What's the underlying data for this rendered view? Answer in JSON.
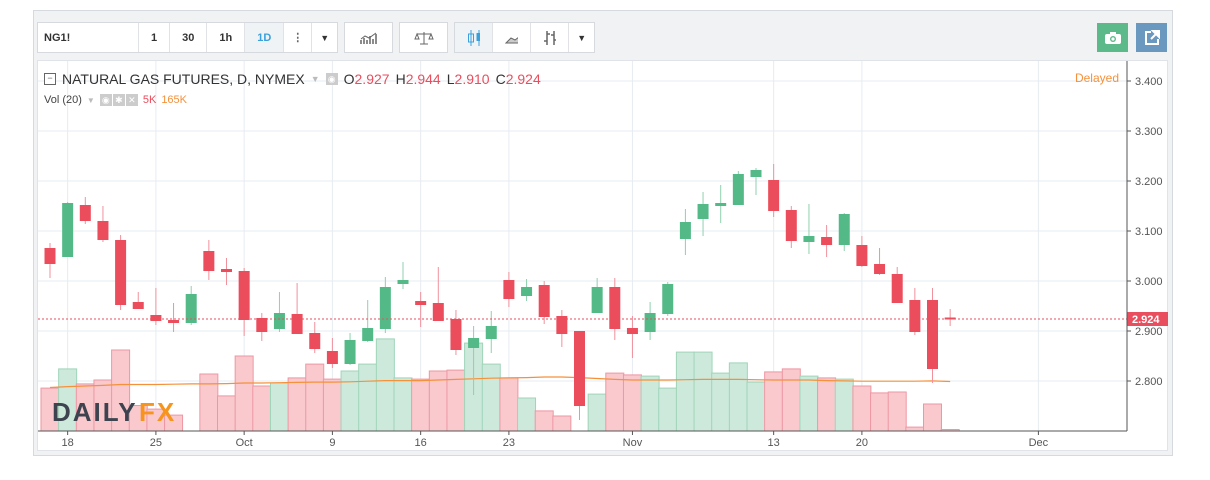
{
  "toolbar": {
    "symbol": "NG1!",
    "intervals": [
      "1",
      "30",
      "1h",
      "1D"
    ],
    "active_interval": "1D"
  },
  "legend": {
    "title": "NATURAL GAS FUTURES, D, NYMEX",
    "o_label": "O",
    "o": "2.927",
    "h_label": "H",
    "h": "2.944",
    "l_label": "L",
    "l": "2.910",
    "c_label": "C",
    "c": "2.924",
    "vol_label": "Vol (20)",
    "vol": "5K",
    "vol_ma": "165K",
    "delayed": "Delayed",
    "logo": "DAILYFX"
  },
  "colors": {
    "up": "#53b987",
    "down": "#eb4d5c",
    "up_vol": "#cde9db",
    "down_vol": "#f9c9ce",
    "ma": "#f5913a"
  },
  "chart_data": {
    "type": "candlestick",
    "last_price": "2.924",
    "price_ticks": [
      "3.400",
      "3.300",
      "3.200",
      "3.100",
      "3.000",
      "2.900",
      "2.800"
    ],
    "x_ticks": [
      {
        "label": "18",
        "bar": 1
      },
      {
        "label": "25",
        "bar": 6
      },
      {
        "label": "Oct",
        "bar": 11
      },
      {
        "label": "9",
        "bar": 16
      },
      {
        "label": "16",
        "bar": 21
      },
      {
        "label": "23",
        "bar": 26
      },
      {
        "label": "Nov",
        "bar": 33
      },
      {
        "label": "13",
        "bar": 41
      },
      {
        "label": "20",
        "bar": 46
      },
      {
        "label": "Dec",
        "bar": 56
      }
    ],
    "ohlc": [
      [
        3.066,
        3.076,
        3.006,
        3.034
      ],
      [
        3.048,
        3.158,
        3.048,
        3.156
      ],
      [
        3.152,
        3.168,
        3.114,
        3.12
      ],
      [
        3.12,
        3.15,
        3.078,
        3.082
      ],
      [
        3.082,
        3.092,
        2.942,
        2.952
      ],
      [
        2.958,
        2.978,
        2.944,
        2.944
      ],
      [
        2.932,
        2.986,
        2.912,
        2.92
      ],
      [
        2.922,
        2.956,
        2.898,
        2.916
      ],
      [
        2.916,
        2.99,
        2.912,
        2.974
      ],
      [
        3.06,
        3.082,
        3.002,
        3.02
      ],
      [
        3.024,
        3.046,
        2.992,
        3.018
      ],
      [
        3.02,
        3.026,
        2.89,
        2.922
      ],
      [
        2.926,
        2.936,
        2.88,
        2.898
      ],
      [
        2.904,
        2.978,
        2.898,
        2.936
      ],
      [
        2.934,
        2.996,
        2.894,
        2.894
      ],
      [
        2.896,
        2.918,
        2.856,
        2.864
      ],
      [
        2.86,
        2.886,
        2.826,
        2.834
      ],
      [
        2.834,
        2.896,
        2.832,
        2.882
      ],
      [
        2.88,
        2.962,
        2.878,
        2.906
      ],
      [
        2.904,
        3.008,
        2.896,
        2.988
      ],
      [
        2.994,
        3.038,
        2.984,
        3.002
      ],
      [
        2.96,
        2.978,
        2.908,
        2.952
      ],
      [
        2.956,
        3.028,
        2.92,
        2.92
      ],
      [
        2.924,
        2.942,
        2.852,
        2.862
      ],
      [
        2.866,
        2.91,
        2.772,
        2.886
      ],
      [
        2.884,
        2.94,
        2.856,
        2.91
      ],
      [
        3.002,
        3.018,
        2.948,
        2.964
      ],
      [
        2.97,
        3.004,
        2.96,
        2.988
      ],
      [
        2.992,
        3.0,
        2.914,
        2.928
      ],
      [
        2.93,
        2.942,
        2.868,
        2.894
      ],
      [
        2.9,
        2.9,
        2.722,
        2.75
      ],
      [
        2.936,
        3.006,
        2.936,
        2.988
      ],
      [
        2.988,
        3.006,
        2.882,
        2.904
      ],
      [
        2.906,
        2.93,
        2.846,
        2.894
      ],
      [
        2.898,
        2.958,
        2.882,
        2.936
      ],
      [
        2.934,
        2.998,
        2.93,
        2.994
      ],
      [
        3.084,
        3.144,
        3.052,
        3.118
      ],
      [
        3.124,
        3.178,
        3.09,
        3.154
      ],
      [
        3.15,
        3.192,
        3.116,
        3.156
      ],
      [
        3.152,
        3.22,
        3.152,
        3.214
      ],
      [
        3.208,
        3.226,
        3.172,
        3.222
      ],
      [
        3.202,
        3.234,
        3.128,
        3.14
      ],
      [
        3.142,
        3.15,
        3.066,
        3.08
      ],
      [
        3.078,
        3.154,
        3.054,
        3.09
      ],
      [
        3.088,
        3.112,
        3.048,
        3.072
      ],
      [
        3.072,
        3.136,
        3.06,
        3.134
      ],
      [
        3.072,
        3.09,
        3.028,
        3.03
      ],
      [
        3.034,
        3.066,
        3.012,
        3.014
      ],
      [
        3.014,
        3.028,
        2.956,
        2.956
      ],
      [
        2.962,
        2.986,
        2.892,
        2.898
      ],
      [
        2.962,
        2.986,
        2.796,
        2.824
      ],
      [
        2.927,
        2.944,
        2.91,
        2.924
      ]
    ],
    "volume_k": [
      143,
      207,
      157,
      170,
      270,
      85,
      73,
      53,
      0,
      190,
      117,
      250,
      150,
      160,
      177,
      223,
      173,
      200,
      223,
      307,
      177,
      173,
      200,
      203,
      293,
      223,
      177,
      110,
      67,
      50,
      0,
      123,
      193,
      187,
      183,
      143,
      263,
      263,
      193,
      227,
      163,
      197,
      207,
      183,
      177,
      173,
      150,
      127,
      130,
      13,
      90,
      5
    ],
    "volume_ma_k": [
      145,
      148,
      150,
      152,
      155,
      155,
      155,
      156,
      157,
      157,
      158,
      160,
      160,
      161,
      162,
      163,
      163,
      164,
      166,
      168,
      168,
      168,
      170,
      172,
      174,
      176,
      177,
      178,
      180,
      180,
      178,
      175,
      172,
      170,
      170,
      170,
      171,
      172,
      172,
      172,
      171,
      170,
      170,
      170,
      168,
      167,
      166,
      166,
      166,
      166,
      167,
      165
    ]
  }
}
